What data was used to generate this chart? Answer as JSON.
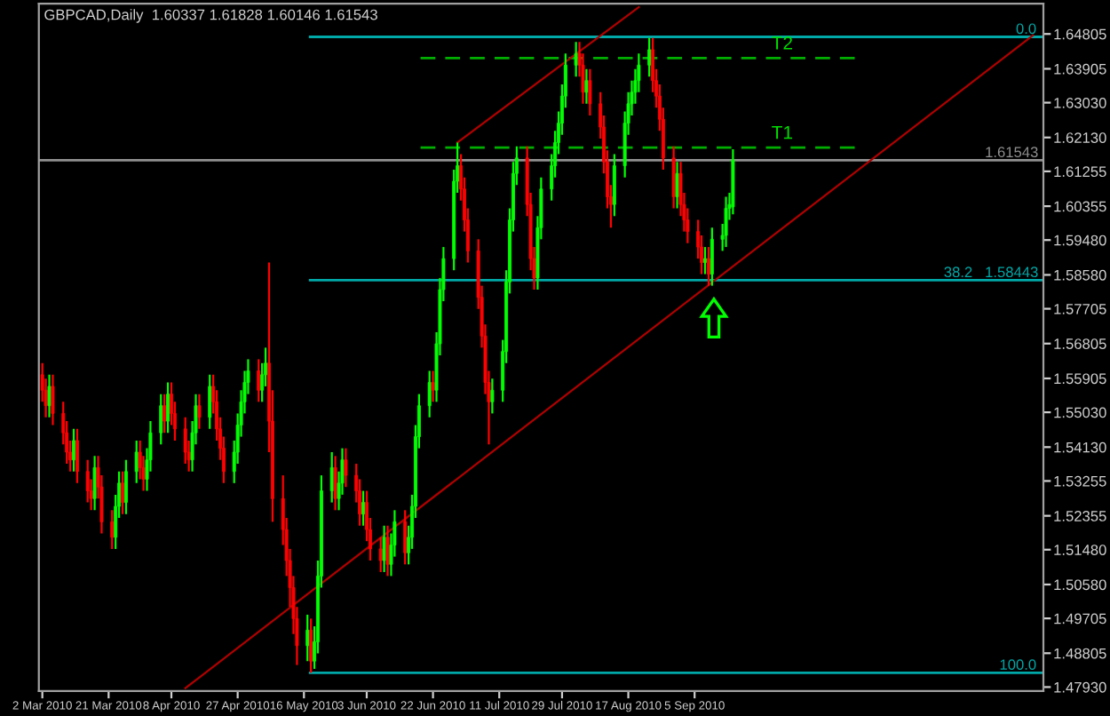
{
  "chart_data": {
    "type": "candlestick",
    "title": "GBPCAD,Daily  1.60337 1.61828 1.60146 1.61543",
    "x": [
      "2010-03-02",
      "2010-03-03",
      "2010-03-04",
      "2010-03-05",
      "2010-03-08",
      "2010-03-09",
      "2010-03-10",
      "2010-03-11",
      "2010-03-12",
      "2010-03-15",
      "2010-03-16",
      "2010-03-17",
      "2010-03-18",
      "2010-03-19",
      "2010-03-22",
      "2010-03-23",
      "2010-03-24",
      "2010-03-25",
      "2010-03-26",
      "2010-03-29",
      "2010-03-30",
      "2010-03-31",
      "2010-04-01",
      "2010-04-02",
      "2010-04-05",
      "2010-04-06",
      "2010-04-07",
      "2010-04-08",
      "2010-04-09",
      "2010-04-12",
      "2010-04-13",
      "2010-04-14",
      "2010-04-15",
      "2010-04-16",
      "2010-04-19",
      "2010-04-20",
      "2010-04-21",
      "2010-04-22",
      "2010-04-23",
      "2010-04-26",
      "2010-04-27",
      "2010-04-28",
      "2010-04-29",
      "2010-04-30",
      "2010-05-03",
      "2010-05-04",
      "2010-05-05",
      "2010-05-06",
      "2010-05-07",
      "2010-05-10",
      "2010-05-11",
      "2010-05-12",
      "2010-05-13",
      "2010-05-14",
      "2010-05-17",
      "2010-05-18",
      "2010-05-19",
      "2010-05-20",
      "2010-05-21",
      "2010-05-24",
      "2010-05-25",
      "2010-05-26",
      "2010-05-27",
      "2010-05-28",
      "2010-05-31",
      "2010-06-01",
      "2010-06-02",
      "2010-06-03",
      "2010-06-04",
      "2010-06-07",
      "2010-06-08",
      "2010-06-09",
      "2010-06-10",
      "2010-06-11",
      "2010-06-14",
      "2010-06-15",
      "2010-06-16",
      "2010-06-17",
      "2010-06-18",
      "2010-06-21",
      "2010-06-22",
      "2010-06-23",
      "2010-06-24",
      "2010-06-25",
      "2010-06-28",
      "2010-06-29",
      "2010-06-30",
      "2010-07-01",
      "2010-07-02",
      "2010-07-05",
      "2010-07-06",
      "2010-07-07",
      "2010-07-08",
      "2010-07-09",
      "2010-07-12",
      "2010-07-13",
      "2010-07-14",
      "2010-07-15",
      "2010-07-16",
      "2010-07-19",
      "2010-07-20",
      "2010-07-21",
      "2010-07-22",
      "2010-07-23",
      "2010-07-26",
      "2010-07-27",
      "2010-07-28",
      "2010-07-29",
      "2010-07-30",
      "2010-08-02",
      "2010-08-03",
      "2010-08-04",
      "2010-08-05",
      "2010-08-06",
      "2010-08-09",
      "2010-08-10",
      "2010-08-11",
      "2010-08-12",
      "2010-08-13",
      "2010-08-16",
      "2010-08-17",
      "2010-08-18",
      "2010-08-19",
      "2010-08-20",
      "2010-08-23",
      "2010-08-24",
      "2010-08-25",
      "2010-08-26",
      "2010-08-27",
      "2010-08-30",
      "2010-08-31",
      "2010-09-01",
      "2010-09-02",
      "2010-09-03",
      "2010-09-06",
      "2010-09-07",
      "2010-09-08",
      "2010-09-09",
      "2010-09-10",
      "2010-09-13",
      "2010-09-14",
      "2010-09-15",
      "2010-09-16"
    ],
    "ohlc": [
      [
        1.56,
        1.563,
        1.553,
        1.556
      ],
      [
        1.556,
        1.559,
        1.549,
        1.552
      ],
      [
        1.552,
        1.56,
        1.549,
        1.557
      ],
      [
        1.557,
        1.56,
        1.547,
        1.55
      ],
      [
        1.55,
        1.553,
        1.542,
        1.545
      ],
      [
        1.545,
        1.548,
        1.537,
        1.54
      ],
      [
        1.54,
        1.543,
        1.535,
        1.538
      ],
      [
        1.538,
        1.546,
        1.535,
        1.543
      ],
      [
        1.543,
        1.546,
        1.532,
        1.535
      ],
      [
        1.535,
        1.538,
        1.527,
        1.53
      ],
      [
        1.53,
        1.533,
        1.525,
        1.528
      ],
      [
        1.528,
        1.539,
        1.525,
        1.536
      ],
      [
        1.536,
        1.539,
        1.528,
        1.531
      ],
      [
        1.531,
        1.534,
        1.519,
        1.522
      ],
      [
        1.522,
        1.525,
        1.515,
        1.518
      ],
      [
        1.518,
        1.529,
        1.515,
        1.526
      ],
      [
        1.526,
        1.535,
        1.523,
        1.532
      ],
      [
        1.532,
        1.535,
        1.524,
        1.527
      ],
      [
        1.527,
        1.538,
        1.524,
        1.535
      ],
      [
        1.535,
        1.543,
        1.532,
        1.54
      ],
      [
        1.54,
        1.543,
        1.533,
        1.536
      ],
      [
        1.536,
        1.539,
        1.53,
        1.533
      ],
      [
        1.533,
        1.541,
        1.53,
        1.538
      ],
      [
        1.538,
        1.548,
        1.535,
        1.545
      ],
      [
        1.545,
        1.555,
        1.542,
        1.552
      ],
      [
        1.552,
        1.555,
        1.545,
        1.548
      ],
      [
        1.548,
        1.558,
        1.545,
        1.555
      ],
      [
        1.555,
        1.558,
        1.547,
        1.55
      ],
      [
        1.55,
        1.553,
        1.543,
        1.546
      ],
      [
        1.546,
        1.549,
        1.537,
        1.54
      ],
      [
        1.54,
        1.543,
        1.535,
        1.538
      ],
      [
        1.538,
        1.548,
        1.535,
        1.545
      ],
      [
        1.545,
        1.555,
        1.542,
        1.552
      ],
      [
        1.552,
        1.555,
        1.546,
        1.549
      ],
      [
        1.549,
        1.56,
        1.546,
        1.557
      ],
      [
        1.557,
        1.56,
        1.55,
        1.553
      ],
      [
        1.553,
        1.556,
        1.543,
        1.546
      ],
      [
        1.546,
        1.549,
        1.538,
        1.541
      ],
      [
        1.541,
        1.544,
        1.532,
        1.535
      ],
      [
        1.535,
        1.543,
        1.532,
        1.54
      ],
      [
        1.54,
        1.55,
        1.537,
        1.547
      ],
      [
        1.547,
        1.556,
        1.544,
        1.553
      ],
      [
        1.553,
        1.561,
        1.55,
        1.558
      ],
      [
        1.558,
        1.564,
        1.555,
        1.561
      ],
      [
        1.561,
        1.564,
        1.553,
        1.556
      ],
      [
        1.556,
        1.563,
        1.553,
        1.56
      ],
      [
        1.56,
        1.567,
        1.557,
        1.563
      ],
      [
        1.563,
        1.589,
        1.54,
        1.548
      ],
      [
        1.548,
        1.556,
        1.522,
        1.528
      ],
      [
        1.528,
        1.534,
        1.516,
        1.52
      ],
      [
        1.52,
        1.523,
        1.508,
        1.512
      ],
      [
        1.512,
        1.515,
        1.5,
        1.505
      ],
      [
        1.505,
        1.508,
        1.493,
        1.497
      ],
      [
        1.497,
        1.5,
        1.485,
        1.49
      ],
      [
        1.49,
        1.498,
        1.486,
        1.494
      ],
      [
        1.494,
        1.497,
        1.483,
        1.486
      ],
      [
        1.486,
        1.495,
        1.484,
        1.491
      ],
      [
        1.491,
        1.512,
        1.488,
        1.508
      ],
      [
        1.508,
        1.534,
        1.505,
        1.53
      ],
      [
        1.53,
        1.54,
        1.527,
        1.536
      ],
      [
        1.536,
        1.539,
        1.525,
        1.528
      ],
      [
        1.528,
        1.535,
        1.525,
        1.532
      ],
      [
        1.532,
        1.541,
        1.529,
        1.538
      ],
      [
        1.538,
        1.541,
        1.531,
        1.534
      ],
      [
        1.534,
        1.537,
        1.527,
        1.53
      ],
      [
        1.53,
        1.533,
        1.521,
        1.524
      ],
      [
        1.524,
        1.53,
        1.521,
        1.527
      ],
      [
        1.527,
        1.53,
        1.517,
        1.52
      ],
      [
        1.52,
        1.523,
        1.512,
        1.515
      ],
      [
        1.515,
        1.518,
        1.509,
        1.512
      ],
      [
        1.512,
        1.521,
        1.509,
        1.518
      ],
      [
        1.518,
        1.521,
        1.508,
        1.511
      ],
      [
        1.511,
        1.519,
        1.508,
        1.516
      ],
      [
        1.516,
        1.525,
        1.513,
        1.522
      ],
      [
        1.522,
        1.525,
        1.511,
        1.514
      ],
      [
        1.514,
        1.521,
        1.511,
        1.518
      ],
      [
        1.518,
        1.529,
        1.515,
        1.526
      ],
      [
        1.526,
        1.547,
        1.523,
        1.544
      ],
      [
        1.544,
        1.555,
        1.541,
        1.552
      ],
      [
        1.552,
        1.561,
        1.549,
        1.558
      ],
      [
        1.558,
        1.561,
        1.553,
        1.556
      ],
      [
        1.556,
        1.571,
        1.553,
        1.568
      ],
      [
        1.568,
        1.585,
        1.565,
        1.582
      ],
      [
        1.582,
        1.593,
        1.579,
        1.59
      ],
      [
        1.59,
        1.613,
        1.587,
        1.61
      ],
      [
        1.61,
        1.62,
        1.607,
        1.614
      ],
      [
        1.614,
        1.617,
        1.605,
        1.608
      ],
      [
        1.608,
        1.611,
        1.597,
        1.6
      ],
      [
        1.6,
        1.603,
        1.589,
        1.592
      ],
      [
        1.592,
        1.595,
        1.577,
        1.58
      ],
      [
        1.58,
        1.583,
        1.567,
        1.57
      ],
      [
        1.57,
        1.573,
        1.555,
        1.558
      ],
      [
        1.558,
        1.561,
        1.542,
        1.553
      ],
      [
        1.553,
        1.559,
        1.55,
        1.556
      ],
      [
        1.556,
        1.569,
        1.553,
        1.566
      ],
      [
        1.566,
        1.587,
        1.563,
        1.584
      ],
      [
        1.584,
        1.603,
        1.581,
        1.6
      ],
      [
        1.6,
        1.615,
        1.597,
        1.612
      ],
      [
        1.612,
        1.619,
        1.609,
        1.616
      ],
      [
        1.616,
        1.619,
        1.601,
        1.604
      ],
      [
        1.604,
        1.607,
        1.587,
        1.59
      ],
      [
        1.59,
        1.593,
        1.582,
        1.585
      ],
      [
        1.585,
        1.601,
        1.582,
        1.598
      ],
      [
        1.598,
        1.611,
        1.595,
        1.608
      ],
      [
        1.608,
        1.617,
        1.605,
        1.614
      ],
      [
        1.614,
        1.623,
        1.611,
        1.62
      ],
      [
        1.62,
        1.628,
        1.617,
        1.625
      ],
      [
        1.625,
        1.635,
        1.622,
        1.632
      ],
      [
        1.632,
        1.643,
        1.629,
        1.64
      ],
      [
        1.64,
        1.646,
        1.637,
        1.643
      ],
      [
        1.643,
        1.646,
        1.637,
        1.64
      ],
      [
        1.64,
        1.643,
        1.63,
        1.633
      ],
      [
        1.633,
        1.639,
        1.63,
        1.636
      ],
      [
        1.636,
        1.639,
        1.627,
        1.63
      ],
      [
        1.63,
        1.633,
        1.621,
        1.624
      ],
      [
        1.624,
        1.627,
        1.612,
        1.615
      ],
      [
        1.615,
        1.618,
        1.603,
        1.606
      ],
      [
        1.606,
        1.609,
        1.598,
        1.604
      ],
      [
        1.604,
        1.617,
        1.601,
        1.614
      ],
      [
        1.614,
        1.628,
        1.611,
        1.625
      ],
      [
        1.625,
        1.633,
        1.622,
        1.63
      ],
      [
        1.63,
        1.636,
        1.627,
        1.633
      ],
      [
        1.633,
        1.639,
        1.63,
        1.636
      ],
      [
        1.636,
        1.643,
        1.633,
        1.64
      ],
      [
        1.64,
        1.647,
        1.637,
        1.644
      ],
      [
        1.644,
        1.647,
        1.633,
        1.636
      ],
      [
        1.636,
        1.639,
        1.629,
        1.632
      ],
      [
        1.632,
        1.635,
        1.623,
        1.626
      ],
      [
        1.626,
        1.629,
        1.613,
        1.616
      ],
      [
        1.616,
        1.619,
        1.603,
        1.606
      ],
      [
        1.606,
        1.615,
        1.603,
        1.612
      ],
      [
        1.612,
        1.615,
        1.601,
        1.604
      ],
      [
        1.604,
        1.607,
        1.597,
        1.6
      ],
      [
        1.6,
        1.603,
        1.594,
        1.597
      ],
      [
        1.597,
        1.6,
        1.59,
        1.593
      ],
      [
        1.593,
        1.596,
        1.586,
        1.589
      ],
      [
        1.589,
        1.593,
        1.586,
        1.59
      ],
      [
        1.59,
        1.593,
        1.583,
        1.586
      ],
      [
        1.586,
        1.598,
        1.583,
        1.595
      ],
      [
        1.595,
        1.599,
        1.592,
        1.596
      ],
      [
        1.596,
        1.606,
        1.593,
        1.603
      ],
      [
        1.603,
        1.607,
        1.6,
        1.604
      ],
      [
        1.60337,
        1.61828,
        1.60146,
        1.61543
      ]
    ],
    "series": [
      {
        "type": "line",
        "color": "#b00000",
        "x": [
          "2010-06-29",
          "2010-08-20"
        ],
        "values": [
          1.62,
          1.655
        ]
      },
      {
        "type": "line",
        "color": "#b00000",
        "x": [
          "2010-04-12",
          "2010-12-11"
        ],
        "values": [
          1.479,
          1.6477
        ]
      }
    ],
    "ref_lines": [
      {
        "axis": "y",
        "value": 1.6473,
        "color": "#00a8a8",
        "line_style": "solid"
      },
      {
        "axis": "y",
        "value": 1.58443,
        "label": "38.2   1.58443",
        "color": "#00a8a8",
        "line_style": "solid"
      },
      {
        "axis": "y",
        "value": 1.483,
        "color": "#00a8a8",
        "line_style": "solid"
      },
      {
        "axis": "y",
        "value": 1.61543,
        "label": "1.61543",
        "color": "#909090",
        "line_style": "solid"
      },
      {
        "axis": "y",
        "value": 1.6418,
        "label": "T2",
        "color": "#00b000",
        "line_style": "dashed"
      },
      {
        "axis": "y",
        "value": 1.6187,
        "label": "T1",
        "color": "#00b000",
        "line_style": "dashed"
      }
    ],
    "annotations": [
      {
        "text": "0.0",
        "x": "2010-12-12",
        "y": 1.6473
      },
      {
        "text": "100.0",
        "x": "2010-12-12",
        "y": 1.483
      }
    ],
    "xlim": [
      "2010-03-01",
      "2010-12-14"
    ],
    "xticks": [
      {
        "value": "2010-03-02",
        "label": "2 Mar 2010"
      },
      {
        "value": "2010-03-21",
        "label": "21 Mar 2010"
      },
      {
        "value": "2010-04-08",
        "label": "8 Apr 2010"
      },
      {
        "value": "2010-04-27",
        "label": "27 Apr 2010"
      },
      {
        "value": "2010-05-16",
        "label": "16 May 2010"
      },
      {
        "value": "2010-06-03",
        "label": "3 Jun 2010"
      },
      {
        "value": "2010-06-22",
        "label": "22 Jun 2010"
      },
      {
        "value": "2010-07-11",
        "label": "11 Jul 2010"
      },
      {
        "value": "2010-07-29",
        "label": "29 Jul 2010"
      },
      {
        "value": "2010-08-17",
        "label": "17 Aug 2010"
      },
      {
        "value": "2010-09-05",
        "label": "5 Sep 2010"
      }
    ],
    "ylim": [
      1.4783,
      1.6559
    ],
    "yticks": [
      {
        "value": 1.4793,
        "label": "1.47930"
      },
      {
        "value": 1.48805,
        "label": "1.48805"
      },
      {
        "value": 1.49705,
        "label": "1.49705"
      },
      {
        "value": 1.5058,
        "label": "1.50580"
      },
      {
        "value": 1.5148,
        "label": "1.51480"
      },
      {
        "value": 1.52355,
        "label": "1.52355"
      },
      {
        "value": 1.53255,
        "label": "1.53255"
      },
      {
        "value": 1.5413,
        "label": "1.54130"
      },
      {
        "value": 1.5503,
        "label": "1.55030"
      },
      {
        "value": 1.55905,
        "label": "1.55905"
      },
      {
        "value": 1.56805,
        "label": "1.56805"
      },
      {
        "value": 1.57705,
        "label": "1.57705"
      },
      {
        "value": 1.5858,
        "label": "1.58580"
      },
      {
        "value": 1.5948,
        "label": "1.59480"
      },
      {
        "value": 1.60355,
        "label": "1.60355"
      },
      {
        "value": 1.61255,
        "label": "1.61255"
      },
      {
        "value": 1.6213,
        "label": "1.62130"
      },
      {
        "value": 1.6303,
        "label": "1.63030"
      },
      {
        "value": 1.63905,
        "label": "1.63905"
      },
      {
        "value": 1.64805,
        "label": "1.64805"
      }
    ],
    "grid": false,
    "legend": false
  }
}
